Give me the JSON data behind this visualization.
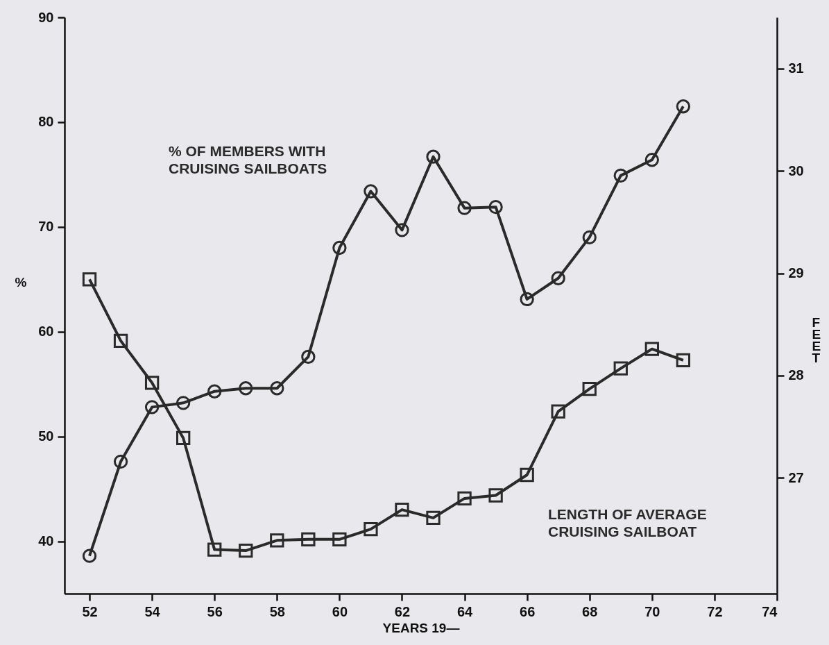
{
  "chart_data": {
    "type": "line",
    "xlabel": "YEARS 19—",
    "ylabel": "%",
    "y2label": "FEET",
    "x": [
      52,
      53,
      54,
      55,
      56,
      57,
      58,
      59,
      60,
      61,
      62,
      63,
      64,
      65,
      66,
      67,
      68,
      69,
      70,
      71
    ],
    "series": [
      {
        "name": "% OF MEMBERS WITH CRUISING SAILBOATS",
        "color": "#2a2a2a",
        "marker": "circle",
        "values": [
          38.6,
          47.6,
          52.8,
          53.2,
          54.3,
          54.6,
          54.6,
          57.6,
          68.0,
          73.4,
          69.7,
          76.7,
          71.8,
          71.9,
          63.1,
          65.1,
          69.0,
          74.9,
          76.4,
          81.5
        ]
      },
      {
        "name": "LENGTH OF AVERAGE CRUISING SAILBOAT",
        "color": "#2a2a2a",
        "marker": "square",
        "axis": "y2",
        "values": [
          28.94,
          28.34,
          27.93,
          27.39,
          26.3,
          26.29,
          26.39,
          26.4,
          26.4,
          26.5,
          26.69,
          26.61,
          26.8,
          26.83,
          27.03,
          27.65,
          27.87,
          28.07,
          28.26,
          28.15
        ]
      }
    ],
    "xlim": [
      51.2,
      74
    ],
    "xticks": [
      52,
      54,
      56,
      58,
      60,
      62,
      64,
      66,
      68,
      70,
      72,
      74
    ],
    "ylim": [
      35,
      90
    ],
    "yticks": [
      40,
      50,
      60,
      70,
      80,
      90
    ],
    "y2lim": [
      25.87,
      31.5
    ],
    "y2ticks": [
      27,
      28,
      29,
      30,
      31
    ],
    "grid": false,
    "line_style": "solid"
  }
}
